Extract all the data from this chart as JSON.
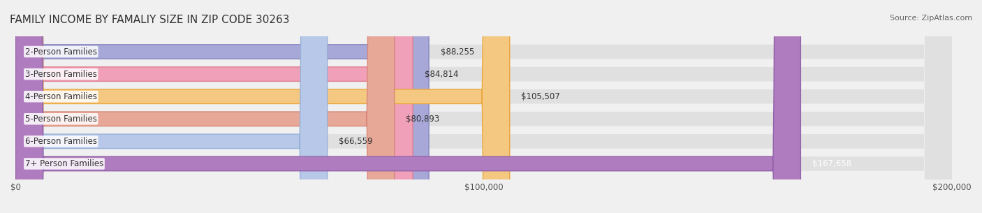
{
  "title": "FAMILY INCOME BY FAMALIY SIZE IN ZIP CODE 30263",
  "source": "Source: ZipAtlas.com",
  "categories": [
    "2-Person Families",
    "3-Person Families",
    "4-Person Families",
    "5-Person Families",
    "6-Person Families",
    "7+ Person Families"
  ],
  "values": [
    88255,
    84814,
    105507,
    80893,
    66559,
    167658
  ],
  "bar_colors": [
    "#a8a8d8",
    "#f0a0b8",
    "#f5c882",
    "#e8a898",
    "#b8c8e8",
    "#b07cc0"
  ],
  "bar_edge_colors": [
    "#8888c0",
    "#e08090",
    "#e8a840",
    "#d88878",
    "#98b0d8",
    "#9060a8"
  ],
  "value_labels": [
    "$88,255",
    "$84,814",
    "$105,507",
    "$80,893",
    "$66,559",
    "$167,658"
  ],
  "xlim": [
    0,
    200000
  ],
  "xticks": [
    0,
    100000,
    200000
  ],
  "xticklabels": [
    "$0",
    "$100,000",
    "$200,000"
  ],
  "bar_height": 0.62,
  "bg_color": "#f0f0f0",
  "bar_bg_color": "#e8e8e8",
  "title_fontsize": 11,
  "label_fontsize": 8.5,
  "value_fontsize": 8.5,
  "tick_fontsize": 8.5
}
